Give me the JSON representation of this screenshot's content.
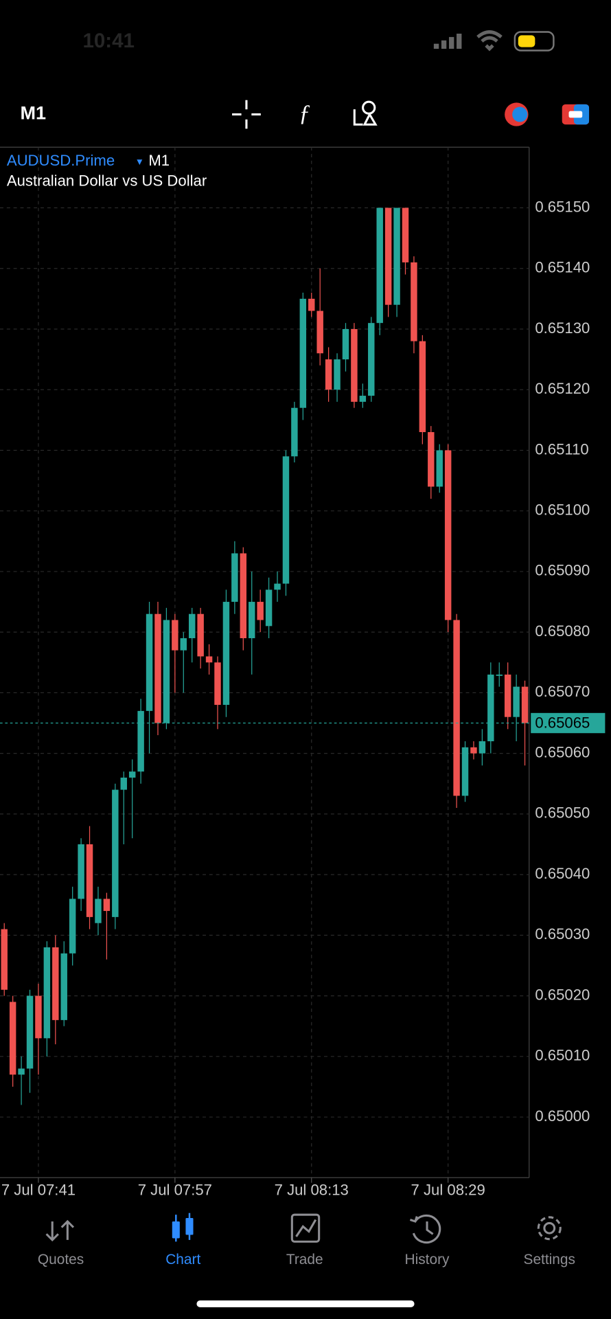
{
  "status_bar": {
    "time": "10:41"
  },
  "toolbar": {
    "timeframe": "M1"
  },
  "nav": [
    "Quotes",
    "Chart",
    "Trade",
    "History",
    "Settings"
  ],
  "chart_data": {
    "type": "candlestick",
    "symbol": "AUDUSD.Prime",
    "timeframe": "M1",
    "description": "Australian Dollar vs US Dollar",
    "categories": [
      null,
      null,
      null,
      null,
      "7 Jul 07:41",
      null,
      null,
      null,
      null,
      null,
      null,
      null,
      null,
      null,
      null,
      null,
      null,
      null,
      null,
      null,
      "7 Jul 07:57",
      null,
      null,
      null,
      null,
      null,
      null,
      null,
      null,
      null,
      null,
      null,
      null,
      null,
      null,
      null,
      "7 Jul 08:13",
      null,
      null,
      null,
      null,
      null,
      null,
      null,
      null,
      null,
      null,
      null,
      null,
      null,
      null,
      null,
      "7 Jul 08:29",
      null,
      null,
      null,
      null,
      null,
      null,
      null,
      null,
      null
    ],
    "open": [
      0.65031,
      0.65019,
      0.65007,
      0.65008,
      0.6502,
      0.65013,
      0.65028,
      0.65016,
      0.65027,
      0.65036,
      0.65045,
      0.65032,
      0.65036,
      0.65033,
      0.65054,
      0.65056,
      0.65057,
      0.65067,
      0.65083,
      0.65065,
      0.65082,
      0.65077,
      0.65079,
      0.65083,
      0.65076,
      0.65075,
      0.65068,
      0.65085,
      0.65093,
      0.65079,
      0.65085,
      0.65081,
      0.65087,
      0.65088,
      0.65109,
      0.65117,
      0.65135,
      0.65133,
      0.65125,
      0.6512,
      0.65125,
      0.6513,
      0.65118,
      0.65119,
      0.65131,
      0.6515,
      0.65134,
      0.6515,
      0.65141,
      0.65128,
      0.65113,
      0.65104,
      0.6511,
      0.65082,
      0.65053,
      0.65061,
      0.6506,
      0.65062,
      0.65073,
      0.65073,
      0.65066,
      0.65071
    ],
    "high": [
      0.65032,
      0.6502,
      0.6501,
      0.65021,
      0.65022,
      0.65029,
      0.6503,
      0.65029,
      0.65038,
      0.65046,
      0.65048,
      0.65038,
      0.65037,
      0.65055,
      0.65057,
      0.65059,
      0.65069,
      0.65085,
      0.65085,
      0.65084,
      0.65083,
      0.6508,
      0.65084,
      0.65084,
      0.65078,
      0.65076,
      0.65087,
      0.65095,
      0.65094,
      0.6509,
      0.65087,
      0.65089,
      0.6509,
      0.6511,
      0.65118,
      0.65136,
      0.65136,
      0.6514,
      0.65127,
      0.65126,
      0.65131,
      0.65131,
      0.65121,
      0.65132,
      0.6515,
      0.6515,
      0.6515,
      0.6515,
      0.65142,
      0.65129,
      0.65114,
      0.65111,
      0.65111,
      0.65083,
      0.65062,
      0.65062,
      0.65064,
      0.65075,
      0.65075,
      0.65075,
      0.65073,
      0.65072
    ],
    "low": [
      0.6502,
      0.65005,
      0.65002,
      0.65004,
      0.65007,
      0.6501,
      0.65012,
      0.65015,
      0.65025,
      0.65034,
      0.65031,
      0.6503,
      0.65026,
      0.65031,
      0.65045,
      0.65046,
      0.65055,
      0.6506,
      0.65063,
      0.65064,
      0.6507,
      0.6507,
      0.65075,
      0.65074,
      0.65073,
      0.65064,
      0.65066,
      0.65083,
      0.65077,
      0.65073,
      0.6508,
      0.65079,
      0.65085,
      0.65086,
      0.65108,
      0.65115,
      0.65132,
      0.65124,
      0.65118,
      0.65118,
      0.65123,
      0.65117,
      0.65117,
      0.65118,
      0.65129,
      0.65132,
      0.65132,
      0.65139,
      0.65126,
      0.65111,
      0.65102,
      0.65103,
      0.6508,
      0.65051,
      0.65052,
      0.65059,
      0.65058,
      0.6506,
      0.65071,
      0.65064,
      0.65062,
      0.65058
    ],
    "close": [
      0.65021,
      0.65007,
      0.65008,
      0.6502,
      0.65013,
      0.65028,
      0.65016,
      0.65027,
      0.65036,
      0.65045,
      0.65033,
      0.65036,
      0.65034,
      0.65054,
      0.65056,
      0.65057,
      0.65067,
      0.65083,
      0.65065,
      0.65082,
      0.65077,
      0.65079,
      0.65083,
      0.65076,
      0.65075,
      0.65068,
      0.65085,
      0.65093,
      0.65079,
      0.65085,
      0.65082,
      0.65087,
      0.65088,
      0.65109,
      0.65117,
      0.65135,
      0.65133,
      0.65126,
      0.6512,
      0.65125,
      0.6513,
      0.65118,
      0.65119,
      0.65131,
      0.6515,
      0.65134,
      0.6515,
      0.65141,
      0.65128,
      0.65113,
      0.65104,
      0.6511,
      0.65082,
      0.65053,
      0.65061,
      0.6506,
      0.65062,
      0.65073,
      0.65073,
      0.65066,
      0.65071,
      0.65065
    ],
    "up_color": "#26a69a",
    "down_color": "#ef5350",
    "current_price": 0.65065,
    "ylim": [
      0.6499,
      0.6516
    ],
    "yticks": [
      {
        "value": 0.65,
        "label": "0.65000"
      },
      {
        "value": 0.6501,
        "label": "0.65010"
      },
      {
        "value": 0.6502,
        "label": "0.65020"
      },
      {
        "value": 0.6503,
        "label": "0.65030"
      },
      {
        "value": 0.6504,
        "label": "0.65040"
      },
      {
        "value": 0.6505,
        "label": "0.65050"
      },
      {
        "value": 0.6506,
        "label": "0.65060"
      },
      {
        "value": 0.6507,
        "label": "0.65070"
      },
      {
        "value": 0.6508,
        "label": "0.65080"
      },
      {
        "value": 0.6509,
        "label": "0.65090"
      },
      {
        "value": 0.651,
        "label": "0.65100"
      },
      {
        "value": 0.6511,
        "label": "0.65110"
      },
      {
        "value": 0.6512,
        "label": "0.65120"
      },
      {
        "value": 0.6513,
        "label": "0.65130"
      },
      {
        "value": 0.6514,
        "label": "0.65140"
      },
      {
        "value": 0.6515,
        "label": "0.65150"
      }
    ],
    "grid": true
  }
}
